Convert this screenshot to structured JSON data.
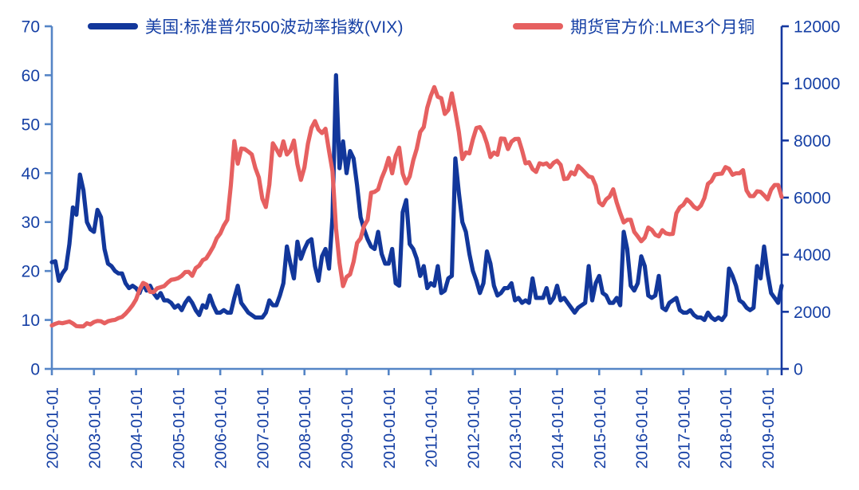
{
  "legend": [
    {
      "label": "美国:标准普尔500波动率指数(VIX)",
      "color": "#12379B"
    },
    {
      "label": "期货官方价:LME3个月铜",
      "color": "#E66060"
    }
  ],
  "chart_data": {
    "type": "line",
    "title": "",
    "xlabel": "",
    "ylabel_left": "",
    "ylabel_right": "",
    "grid": false,
    "legend_position": "top",
    "axis_color": "#5585C6",
    "right_axis_line_color": "#1538A0",
    "text_color": "#1640A5",
    "background": "#ffffff",
    "x_labels": [
      "2002-01-01",
      "2003-01-01",
      "2004-01-01",
      "2005-01-01",
      "2006-01-01",
      "2007-01-01",
      "2008-01-01",
      "2009-01-01",
      "2010-01-01",
      "2011-01-01",
      "2012-01-01",
      "2013-01-01",
      "2014-01-01",
      "2015-01-01",
      "2016-01-01",
      "2017-01-01",
      "2018-01-01",
      "2019-01-01"
    ],
    "x_start_month": "2002-01",
    "x_frequency": "monthly",
    "left_axis": {
      "min": 0,
      "max": 70,
      "ticks": [
        0,
        10,
        20,
        30,
        40,
        50,
        60,
        70
      ]
    },
    "right_axis": {
      "min": 0,
      "max": 12000,
      "ticks": [
        0,
        2000,
        4000,
        6000,
        8000,
        10000,
        12000
      ]
    },
    "series": [
      {
        "name": "美国:标准普尔500波动率指数(VIX)",
        "axis": "left",
        "color": "#12379B",
        "monthly_values": [
          21.8,
          22.0,
          18.0,
          19.5,
          20.5,
          25.5,
          33.0,
          31.5,
          39.7,
          36.5,
          30.0,
          28.5,
          28.0,
          32.5,
          31.0,
          24.5,
          21.5,
          21.0,
          20.0,
          19.5,
          19.5,
          17.5,
          16.5,
          17.0,
          16.5,
          15.5,
          17.5,
          16.0,
          17.0,
          15.5,
          14.5,
          15.5,
          14.0,
          14.0,
          13.5,
          12.5,
          13.0,
          12.0,
          13.5,
          14.5,
          13.5,
          12.0,
          11.0,
          13.0,
          12.5,
          15.0,
          13.0,
          11.5,
          11.5,
          12.0,
          11.5,
          11.5,
          14.5,
          17.0,
          13.5,
          12.5,
          11.5,
          11.0,
          10.5,
          10.5,
          10.5,
          11.5,
          14.0,
          13.0,
          13.0,
          15.0,
          17.5,
          25.0,
          21.5,
          18.5,
          26.0,
          22.5,
          24.5,
          26.0,
          26.5,
          21.0,
          18.0,
          23.0,
          24.5,
          20.5,
          31.0,
          60.0,
          41.0,
          46.5,
          40.0,
          44.5,
          43.0,
          37.5,
          31.0,
          28.5,
          26.5,
          25.0,
          24.5,
          28.0,
          23.5,
          21.5,
          21.5,
          24.5,
          17.5,
          17.0,
          32.0,
          34.5,
          25.5,
          24.5,
          22.5,
          19.0,
          21.0,
          16.5,
          17.5,
          17.0,
          21.0,
          15.5,
          16.0,
          18.5,
          19.0,
          43.0,
          36.0,
          30.0,
          28.0,
          23.5,
          20.0,
          18.0,
          15.5,
          17.5,
          24.0,
          21.5,
          17.0,
          15.0,
          15.5,
          16.5,
          16.5,
          17.5,
          14.0,
          14.5,
          13.5,
          14.0,
          13.5,
          18.5,
          14.5,
          14.5,
          14.5,
          16.5,
          13.5,
          14.5,
          17.0,
          14.0,
          14.5,
          13.5,
          12.5,
          11.5,
          12.5,
          13.0,
          13.5,
          21.0,
          14.0,
          17.5,
          19.0,
          15.5,
          15.0,
          13.5,
          13.5,
          14.5,
          13.0,
          28.0,
          24.5,
          17.0,
          16.0,
          17.5,
          23.0,
          21.0,
          15.0,
          14.5,
          15.0,
          19.0,
          12.5,
          12.0,
          13.5,
          14.0,
          14.5,
          12.0,
          11.5,
          11.5,
          12.0,
          11.0,
          10.5,
          10.5,
          10.0,
          11.5,
          10.5,
          10.0,
          10.5,
          10.0,
          11.0,
          20.5,
          19.0,
          17.0,
          14.0,
          13.5,
          12.5,
          12.0,
          12.5,
          21.0,
          18.5,
          25.0,
          19.5,
          15.5,
          14.5,
          13.5,
          17.0
        ]
      },
      {
        "name": "期货官方价:LME3个月铜",
        "axis": "right",
        "color": "#E66060",
        "monthly_values": [
          1520,
          1580,
          1620,
          1600,
          1630,
          1660,
          1590,
          1500,
          1490,
          1490,
          1600,
          1560,
          1640,
          1680,
          1670,
          1600,
          1670,
          1700,
          1720,
          1780,
          1820,
          1930,
          2070,
          2230,
          2430,
          2780,
          3010,
          2950,
          2700,
          2690,
          2820,
          2860,
          2900,
          3020,
          3120,
          3140,
          3180,
          3260,
          3390,
          3400,
          3260,
          3530,
          3620,
          3810,
          3870,
          4070,
          4280,
          4580,
          4740,
          5020,
          5220,
          6420,
          7980,
          7190,
          7720,
          7700,
          7610,
          7510,
          7040,
          6710,
          5960,
          5670,
          6450,
          7900,
          7700,
          7480,
          7970,
          7510,
          7650,
          8000,
          7170,
          6620,
          7060,
          7890,
          8440,
          8680,
          8380,
          8260,
          8410,
          7640,
          6920,
          4920,
          3710,
          2900,
          3220,
          3310,
          3750,
          4410,
          4570,
          5010,
          5220,
          6170,
          6200,
          6290,
          6680,
          6980,
          7390,
          6850,
          7460,
          7750,
          6840,
          6500,
          6740,
          7300,
          7710,
          8300,
          8470,
          9150,
          9560,
          9870,
          9530,
          9480,
          8930,
          9070,
          9650,
          9000,
          8300,
          7350,
          7580,
          7550,
          8040,
          8440,
          8470,
          8260,
          7900,
          7420,
          7580,
          7500,
          8070,
          8060,
          7700,
          7960,
          8050,
          8060,
          7660,
          7200,
          7240,
          7000,
          6900,
          7200,
          7160,
          7200,
          7070,
          7220,
          7290,
          7150,
          6650,
          6670,
          6890,
          6810,
          7110,
          7000,
          6870,
          6740,
          6710,
          6420,
          5830,
          5730,
          5940,
          6040,
          6290,
          5830,
          5460,
          5130,
          5220,
          5220,
          4800,
          4640,
          4470,
          4600,
          4950,
          4870,
          4700,
          4640,
          4860,
          4750,
          4720,
          4730,
          5450,
          5660,
          5750,
          5940,
          5830,
          5680,
          5600,
          5720,
          5990,
          6480,
          6580,
          6810,
          6830,
          6840,
          7070,
          7010,
          6800,
          6850,
          6850,
          6960,
          6250,
          6050,
          6050,
          6220,
          6200,
          6080,
          5940,
          6280,
          6440,
          6440,
          6020
        ]
      }
    ]
  }
}
